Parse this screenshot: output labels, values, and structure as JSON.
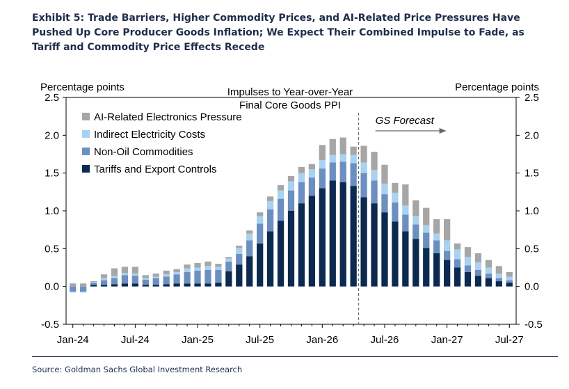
{
  "title_lines": [
    "Exhibit 5: Trade Barriers, Higher Commodity Prices, and AI-Related Price Pressures Have",
    "Pushed Up Core Producer Goods Inflation; We Expect Their Combined Impulse to Fade, as",
    "Tariff and Commodity Price Effects Recede"
  ],
  "source": "Source: Goldman Sachs Global Investment Research",
  "chart_data": {
    "type": "bar",
    "stacked": true,
    "title_lines": [
      "Impulses to Year-over-Year",
      "Final Core Goods PPI"
    ],
    "ylabel_left": "Percentage points",
    "ylabel_right": "Percentage points",
    "ylim": [
      -0.5,
      2.5
    ],
    "yticks": [
      "-0.5",
      "0.0",
      "0.5",
      "1.0",
      "1.5",
      "2.0",
      "2.5"
    ],
    "ytick_values": [
      -0.5,
      0.0,
      0.5,
      1.0,
      1.5,
      2.0,
      2.5
    ],
    "x_tick_labels": [
      "Jan-24",
      "Jul-24",
      "Jan-25",
      "Jul-25",
      "Jan-26",
      "Jul-26",
      "Jan-27",
      "Jul-27"
    ],
    "x_tick_index": [
      0,
      6,
      12,
      18,
      24,
      30,
      36,
      42
    ],
    "forecast_label": "GS Forecast",
    "forecast_start_index": 28,
    "legend_position": "top-left",
    "categories": [
      "Jan-24",
      "Feb-24",
      "Mar-24",
      "Apr-24",
      "May-24",
      "Jun-24",
      "Jul-24",
      "Aug-24",
      "Sep-24",
      "Oct-24",
      "Nov-24",
      "Dec-24",
      "Jan-25",
      "Feb-25",
      "Mar-25",
      "Apr-25",
      "May-25",
      "Jun-25",
      "Jul-25",
      "Aug-25",
      "Sep-25",
      "Oct-25",
      "Nov-25",
      "Dec-25",
      "Jan-26",
      "Feb-26",
      "Mar-26",
      "Apr-26",
      "May-26",
      "Jun-26",
      "Jul-26",
      "Aug-26",
      "Sep-26",
      "Oct-26",
      "Nov-26",
      "Dec-26",
      "Jan-27",
      "Feb-27",
      "Mar-27",
      "Apr-27",
      "May-27",
      "Jun-27",
      "Jul-27"
    ],
    "series": [
      {
        "name": "Tariffs and Export Controls",
        "color": "#0c2a4f",
        "values": [
          0.0,
          0.0,
          0.02,
          0.02,
          0.03,
          0.04,
          0.04,
          0.02,
          0.02,
          0.03,
          0.04,
          0.04,
          0.04,
          0.04,
          0.05,
          0.2,
          0.29,
          0.4,
          0.57,
          0.73,
          0.87,
          1.0,
          1.1,
          1.2,
          1.3,
          1.4,
          1.38,
          1.33,
          1.18,
          1.1,
          0.98,
          0.86,
          0.73,
          0.63,
          0.51,
          0.44,
          0.35,
          0.25,
          0.19,
          0.14,
          0.11,
          0.07,
          0.05
        ]
      },
      {
        "name": "Non-Oil Commodities",
        "color": "#6b8fc0",
        "values": [
          -0.07,
          -0.07,
          0.03,
          0.06,
          0.08,
          0.11,
          0.1,
          0.07,
          0.09,
          0.1,
          0.12,
          0.15,
          0.17,
          0.18,
          0.17,
          0.13,
          0.14,
          0.21,
          0.26,
          0.29,
          0.29,
          0.27,
          0.28,
          0.24,
          0.26,
          0.24,
          0.27,
          0.3,
          0.32,
          0.3,
          0.24,
          0.25,
          0.22,
          0.19,
          0.2,
          0.17,
          0.12,
          0.11,
          0.09,
          0.08,
          0.06,
          0.04,
          0.03
        ]
      },
      {
        "name": "Indirect Electricity Costs",
        "color": "#a9d1f0",
        "values": [
          -0.01,
          -0.01,
          0.01,
          0.03,
          0.03,
          0.03,
          0.03,
          0.02,
          0.02,
          0.03,
          0.03,
          0.05,
          0.04,
          0.05,
          0.04,
          0.04,
          0.08,
          0.09,
          0.1,
          0.11,
          0.11,
          0.12,
          0.12,
          0.11,
          0.11,
          0.1,
          0.1,
          0.11,
          0.14,
          0.14,
          0.14,
          0.13,
          0.12,
          0.11,
          0.1,
          0.09,
          0.14,
          0.13,
          0.11,
          0.1,
          0.08,
          0.06,
          0.05
        ]
      },
      {
        "name": "AI-Related Electronics Pressure",
        "color": "#a6a6a6",
        "values": [
          0.04,
          0.04,
          0.01,
          0.05,
          0.1,
          0.08,
          0.09,
          0.04,
          0.04,
          0.05,
          0.04,
          0.05,
          0.06,
          0.06,
          0.04,
          0.02,
          0.03,
          0.04,
          0.05,
          0.06,
          0.07,
          0.07,
          0.08,
          0.07,
          0.2,
          0.21,
          0.22,
          0.11,
          0.22,
          0.24,
          0.25,
          0.13,
          0.28,
          0.21,
          0.23,
          0.19,
          0.28,
          0.08,
          0.13,
          0.12,
          0.1,
          0.1,
          0.06
        ]
      }
    ]
  }
}
